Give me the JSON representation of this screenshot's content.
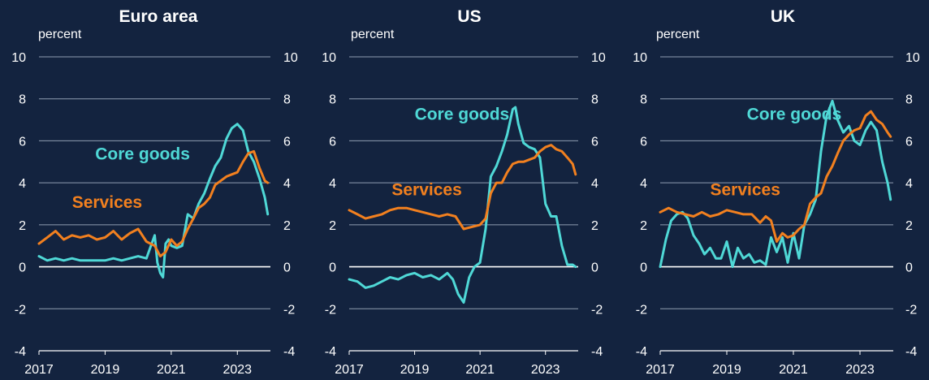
{
  "colors": {
    "background": "#13233f",
    "core_goods": "#4fd8d6",
    "services": "#f2801f",
    "gridline": "#8f9db0",
    "zero_line": "#ffffff",
    "text": "#ffffff"
  },
  "chart_data": [
    {
      "type": "line",
      "title": "Euro area",
      "ylabel": "percent",
      "ylim": [
        -4,
        10
      ],
      "yticks": [
        "10",
        "8",
        "6",
        "4",
        "2",
        "0",
        "-2",
        "-4"
      ],
      "xlim": [
        2017.0,
        2024.0
      ],
      "xticks": [
        "2017",
        "2019",
        "2021",
        "2023"
      ],
      "grid": true,
      "series": [
        {
          "name": "Core goods",
          "x": [
            2017.0,
            2017.25,
            2017.5,
            2017.75,
            2018.0,
            2018.25,
            2018.5,
            2018.75,
            2019.0,
            2019.25,
            2019.5,
            2019.75,
            2020.0,
            2020.25,
            2020.5,
            2020.58,
            2020.67,
            2020.75,
            2020.83,
            2020.92,
            2021.0,
            2021.17,
            2021.33,
            2021.5,
            2021.67,
            2021.83,
            2022.0,
            2022.17,
            2022.33,
            2022.5,
            2022.67,
            2022.83,
            2023.0,
            2023.17,
            2023.33,
            2023.5,
            2023.67,
            2023.83,
            2023.92
          ],
          "values": [
            0.5,
            0.3,
            0.4,
            0.3,
            0.4,
            0.3,
            0.3,
            0.3,
            0.3,
            0.4,
            0.3,
            0.4,
            0.5,
            0.4,
            1.5,
            0.2,
            -0.3,
            -0.5,
            1.1,
            1.3,
            1.0,
            0.9,
            1.0,
            2.5,
            2.3,
            3.0,
            3.5,
            4.2,
            4.8,
            5.2,
            6.1,
            6.6,
            6.8,
            6.5,
            5.5,
            5.0,
            4.2,
            3.3,
            2.5
          ]
        },
        {
          "name": "Services",
          "x": [
            2017.0,
            2017.25,
            2017.5,
            2017.75,
            2018.0,
            2018.25,
            2018.5,
            2018.75,
            2019.0,
            2019.25,
            2019.5,
            2019.75,
            2020.0,
            2020.25,
            2020.5,
            2020.67,
            2020.83,
            2021.0,
            2021.17,
            2021.33,
            2021.5,
            2021.67,
            2021.83,
            2022.0,
            2022.17,
            2022.33,
            2022.5,
            2022.67,
            2022.83,
            2023.0,
            2023.17,
            2023.33,
            2023.5,
            2023.67,
            2023.83,
            2023.92
          ],
          "values": [
            1.1,
            1.4,
            1.7,
            1.3,
            1.5,
            1.4,
            1.5,
            1.3,
            1.4,
            1.7,
            1.3,
            1.6,
            1.8,
            1.2,
            1.0,
            0.5,
            0.7,
            1.3,
            1.0,
            1.2,
            1.8,
            2.3,
            2.8,
            3.0,
            3.3,
            3.9,
            4.1,
            4.3,
            4.4,
            4.5,
            5.0,
            5.4,
            5.5,
            4.7,
            4.1,
            4.0
          ]
        }
      ],
      "annotations": [
        {
          "text": "Core goods",
          "series": "Core goods",
          "x": 2018.7,
          "y": 5.1
        },
        {
          "text": "Services",
          "series": "Services",
          "x": 2018.0,
          "y": 2.8
        }
      ]
    },
    {
      "type": "line",
      "title": "US",
      "ylabel": "percent",
      "ylim": [
        -4,
        10
      ],
      "yticks": [
        "10",
        "8",
        "6",
        "4",
        "2",
        "0",
        "-2",
        "-4"
      ],
      "xlim": [
        2017.0,
        2024.0
      ],
      "xticks": [
        "2017",
        "2019",
        "2021",
        "2023"
      ],
      "grid": true,
      "series": [
        {
          "name": "Core goods",
          "x": [
            2017.0,
            2017.25,
            2017.5,
            2017.75,
            2018.0,
            2018.25,
            2018.5,
            2018.75,
            2019.0,
            2019.25,
            2019.5,
            2019.75,
            2020.0,
            2020.17,
            2020.33,
            2020.5,
            2020.67,
            2020.83,
            2021.0,
            2021.17,
            2021.33,
            2021.5,
            2021.67,
            2021.83,
            2022.0,
            2022.08,
            2022.17,
            2022.33,
            2022.5,
            2022.67,
            2022.83,
            2023.0,
            2023.17,
            2023.33,
            2023.5,
            2023.67,
            2023.83,
            2023.92
          ],
          "values": [
            -0.6,
            -0.7,
            -1.0,
            -0.9,
            -0.7,
            -0.5,
            -0.6,
            -0.4,
            -0.3,
            -0.5,
            -0.4,
            -0.6,
            -0.3,
            -0.6,
            -1.3,
            -1.7,
            -0.5,
            0.0,
            0.2,
            1.8,
            4.3,
            4.8,
            5.5,
            6.3,
            7.5,
            7.6,
            6.8,
            5.9,
            5.7,
            5.6,
            5.2,
            3.0,
            2.4,
            2.4,
            1.0,
            0.1,
            0.1,
            0.0
          ]
        },
        {
          "name": "Services",
          "x": [
            2017.0,
            2017.25,
            2017.5,
            2017.75,
            2018.0,
            2018.25,
            2018.5,
            2018.75,
            2019.0,
            2019.25,
            2019.5,
            2019.75,
            2020.0,
            2020.25,
            2020.5,
            2020.75,
            2021.0,
            2021.17,
            2021.33,
            2021.5,
            2021.67,
            2021.83,
            2022.0,
            2022.17,
            2022.33,
            2022.5,
            2022.67,
            2022.83,
            2023.0,
            2023.17,
            2023.33,
            2023.5,
            2023.67,
            2023.83,
            2023.92
          ],
          "values": [
            2.7,
            2.5,
            2.3,
            2.4,
            2.5,
            2.7,
            2.8,
            2.8,
            2.7,
            2.6,
            2.5,
            2.4,
            2.5,
            2.4,
            1.8,
            1.9,
            2.0,
            2.3,
            3.5,
            4.0,
            4.0,
            4.5,
            4.9,
            5.0,
            5.0,
            5.1,
            5.2,
            5.5,
            5.7,
            5.8,
            5.6,
            5.5,
            5.2,
            4.9,
            4.4
          ]
        }
      ],
      "annotations": [
        {
          "text": "Core goods",
          "series": "Core goods",
          "x": 2019.0,
          "y": 7.0
        },
        {
          "text": "Services",
          "series": "Services",
          "x": 2018.3,
          "y": 3.4
        }
      ]
    },
    {
      "type": "line",
      "title": "UK",
      "ylabel": "percent",
      "ylim": [
        -4,
        10
      ],
      "yticks": [
        "10",
        "8",
        "6",
        "4",
        "2",
        "0",
        "-2",
        "-4"
      ],
      "xlim": [
        2017.0,
        2024.0
      ],
      "xticks": [
        "2017",
        "2019",
        "2021",
        "2023"
      ],
      "grid": true,
      "series": [
        {
          "name": "Core goods",
          "x": [
            2017.0,
            2017.17,
            2017.33,
            2017.5,
            2017.67,
            2017.83,
            2018.0,
            2018.17,
            2018.33,
            2018.5,
            2018.67,
            2018.83,
            2019.0,
            2019.17,
            2019.33,
            2019.5,
            2019.67,
            2019.83,
            2020.0,
            2020.17,
            2020.33,
            2020.5,
            2020.67,
            2020.83,
            2021.0,
            2021.17,
            2021.33,
            2021.5,
            2021.67,
            2021.83,
            2022.0,
            2022.17,
            2022.33,
            2022.5,
            2022.67,
            2022.83,
            2023.0,
            2023.17,
            2023.33,
            2023.5,
            2023.67,
            2023.83,
            2023.92
          ],
          "values": [
            0.0,
            1.3,
            2.2,
            2.5,
            2.6,
            2.3,
            1.5,
            1.1,
            0.6,
            0.9,
            0.4,
            0.4,
            1.2,
            0.0,
            0.9,
            0.4,
            0.6,
            0.2,
            0.3,
            0.1,
            1.4,
            0.7,
            1.4,
            0.2,
            1.6,
            0.4,
            2.0,
            2.5,
            3.2,
            5.5,
            7.2,
            7.9,
            7.0,
            6.4,
            6.7,
            6.0,
            5.8,
            6.5,
            6.9,
            6.5,
            5.0,
            4.0,
            3.2
          ]
        },
        {
          "name": "Services",
          "x": [
            2017.0,
            2017.25,
            2017.5,
            2017.75,
            2018.0,
            2018.25,
            2018.5,
            2018.75,
            2019.0,
            2019.25,
            2019.5,
            2019.75,
            2020.0,
            2020.17,
            2020.33,
            2020.5,
            2020.67,
            2020.83,
            2021.0,
            2021.17,
            2021.33,
            2021.5,
            2021.67,
            2021.83,
            2022.0,
            2022.17,
            2022.33,
            2022.5,
            2022.67,
            2022.83,
            2023.0,
            2023.17,
            2023.33,
            2023.5,
            2023.67,
            2023.83,
            2023.92
          ],
          "values": [
            2.6,
            2.8,
            2.6,
            2.5,
            2.4,
            2.6,
            2.4,
            2.5,
            2.7,
            2.6,
            2.5,
            2.5,
            2.1,
            2.4,
            2.2,
            1.2,
            1.6,
            1.4,
            1.5,
            1.8,
            2.0,
            3.0,
            3.3,
            3.5,
            4.3,
            4.8,
            5.4,
            6.0,
            6.3,
            6.5,
            6.6,
            7.2,
            7.4,
            7.0,
            6.8,
            6.4,
            6.2
          ]
        }
      ],
      "annotations": [
        {
          "text": "Core goods",
          "series": "Core goods",
          "x": 2019.6,
          "y": 7.0
        },
        {
          "text": "Services",
          "series": "Services",
          "x": 2018.5,
          "y": 3.4
        }
      ]
    }
  ]
}
